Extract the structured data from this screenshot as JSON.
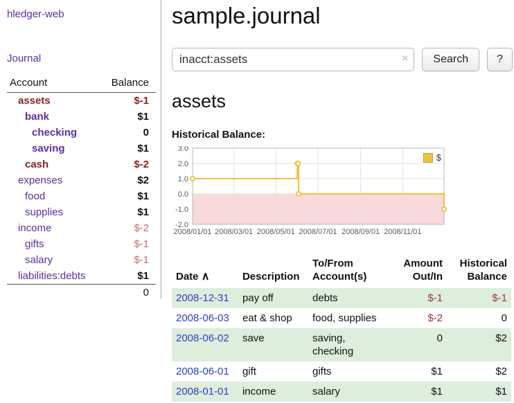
{
  "app": {
    "title": "hledger-web",
    "nav_journal": "Journal"
  },
  "sidebar": {
    "header": {
      "account": "Account",
      "balance": "Balance"
    },
    "accounts": [
      {
        "name": "assets",
        "indent": 1,
        "name_class": "acct-neg",
        "balance": "$-1",
        "bal_class": "bal-neg"
      },
      {
        "name": "bank",
        "indent": 2,
        "name_class": "acct-cur",
        "balance": "$1",
        "bal_class": "bal-pos"
      },
      {
        "name": "checking",
        "indent": 3,
        "name_class": "acct-cur",
        "balance": "0",
        "bal_class": "bal-pos"
      },
      {
        "name": "saving",
        "indent": 3,
        "name_class": "acct-cur",
        "balance": "$1",
        "bal_class": "bal-pos"
      },
      {
        "name": "cash",
        "indent": 2,
        "name_class": "acct-neg",
        "balance": "$-2",
        "bal_class": "bal-neg"
      },
      {
        "name": "expenses",
        "indent": 1,
        "name_class": "acct",
        "balance": "$2",
        "bal_class": "bal-pos"
      },
      {
        "name": "food",
        "indent": 2,
        "name_class": "acct",
        "balance": "$1",
        "bal_class": "bal-pos"
      },
      {
        "name": "supplies",
        "indent": 2,
        "name_class": "acct",
        "balance": "$1",
        "bal_class": "bal-pos"
      },
      {
        "name": "income",
        "indent": 1,
        "name_class": "acct",
        "balance": "$-2",
        "bal_class": "bal-neg-light"
      },
      {
        "name": "gifts",
        "indent": 2,
        "name_class": "acct",
        "balance": "$-1",
        "bal_class": "bal-neg-light"
      },
      {
        "name": "salary",
        "indent": 2,
        "name_class": "acct",
        "balance": "$-1",
        "bal_class": "bal-neg-light"
      },
      {
        "name": "liabilities:debts",
        "indent": 1,
        "name_class": "acct",
        "balance": "$1",
        "bal_class": "bal-pos"
      }
    ],
    "total": "0"
  },
  "main": {
    "title": "sample.journal",
    "search": {
      "value": "inacct:assets",
      "clear": "×",
      "button": "Search",
      "help": "?"
    },
    "section_title": "assets",
    "chart_label": "Historical Balance:"
  },
  "chart_data": {
    "type": "line",
    "step": true,
    "title": "Historical Balance",
    "series": [
      {
        "name": "$",
        "color": "#edc240",
        "points": [
          [
            "2008-01-01",
            1
          ],
          [
            "2008-06-01",
            2
          ],
          [
            "2008-06-02",
            2
          ],
          [
            "2008-06-03",
            0
          ],
          [
            "2008-12-31",
            -1
          ]
        ]
      }
    ],
    "ylim": [
      -2,
      3
    ],
    "y_ticks": [
      3,
      2,
      1,
      0,
      -1,
      -2
    ],
    "x_ticks": [
      "2008/01/01",
      "2008/03/01",
      "2008/05/01",
      "2008/07/01",
      "2008/09/01",
      "2008/11/01"
    ],
    "x_range_days": 365,
    "grid": true,
    "negative_fill": "#f9d9da",
    "legend": "$",
    "legend_position": "top-right"
  },
  "register": {
    "headers": {
      "date": "Date",
      "sort": "∧",
      "desc": "Description",
      "acct1": "To/From",
      "acct2": "Account(s)",
      "amt1": "Amount",
      "amt2": "Out/In",
      "bal1": "Historical",
      "bal2": "Balance"
    },
    "rows": [
      {
        "date": "2008-12-31",
        "desc": "pay off",
        "accounts": "debts",
        "amount": "$-1",
        "amount_neg": true,
        "balance": "$-1",
        "balance_neg": true,
        "stripe": true
      },
      {
        "date": "2008-06-03",
        "desc": "eat & shop",
        "accounts": "food, supplies",
        "amount": "$-2",
        "amount_neg": true,
        "balance": "0",
        "balance_neg": false,
        "stripe": false
      },
      {
        "date": "2008-06-02",
        "desc": "save",
        "accounts": "saving, checking",
        "amount": "0",
        "amount_neg": false,
        "balance": "$2",
        "balance_neg": false,
        "stripe": true
      },
      {
        "date": "2008-06-01",
        "desc": "gift",
        "accounts": "gifts",
        "amount": "$1",
        "amount_neg": false,
        "balance": "$2",
        "balance_neg": false,
        "stripe": false
      },
      {
        "date": "2008-01-01",
        "desc": "income",
        "accounts": "salary",
        "amount": "$1",
        "amount_neg": false,
        "balance": "$1",
        "balance_neg": false,
        "stripe": true
      }
    ]
  },
  "colors": {
    "link_purple": "#5e2ca5",
    "negative_dark": "#8d2121",
    "negative_light": "#c96a6a",
    "table_negative": "#a33434",
    "date_link_blue": "#2e3ec4",
    "stripe_green": "#ddeedd",
    "chart_line_gold": "#edc240",
    "chart_negative_fill": "#f9d9da"
  }
}
